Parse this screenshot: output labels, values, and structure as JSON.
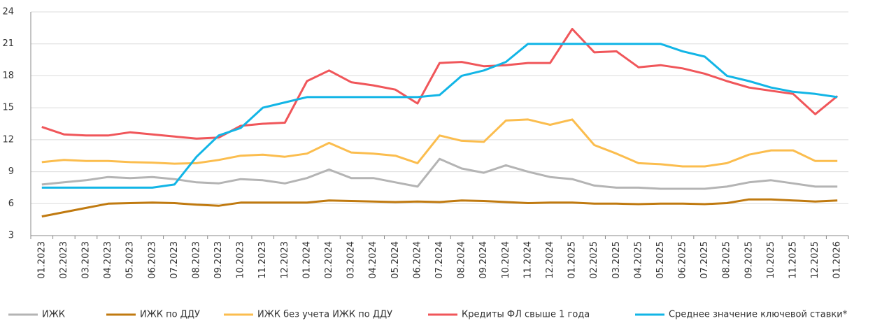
{
  "chart_data": {
    "type": "line",
    "categories": [
      "01.2023",
      "02.2023",
      "03.2023",
      "04.2023",
      "05.2023",
      "06.2023",
      "07.2023",
      "08.2023",
      "09.2023",
      "10.2023",
      "11.2023",
      "12.2023",
      "01.2024",
      "02.2024",
      "03.2024",
      "04.2024",
      "05.2024",
      "06.2024",
      "07.2024",
      "08.2024",
      "09.2024",
      "10.2024",
      "11.2024",
      "12.2024",
      "01.2025",
      "02.2025",
      "03.2025",
      "04.2025",
      "05.2025",
      "06.2025",
      "07.2025",
      "08.2025",
      "09.2025",
      "10.2025",
      "11.2025",
      "12.2025",
      "01.2026"
    ],
    "ylim": [
      3,
      24
    ],
    "yticks": [
      3,
      6,
      9,
      12,
      15,
      18,
      21,
      24
    ],
    "grid": true,
    "series": [
      {
        "name": "ИЖК",
        "color": "#b4b4b4",
        "values": [
          7.8,
          8.0,
          8.2,
          8.5,
          8.4,
          8.5,
          8.3,
          8.0,
          7.9,
          8.3,
          8.2,
          7.9,
          8.4,
          9.2,
          8.4,
          8.4,
          8.0,
          7.6,
          10.2,
          9.3,
          8.9,
          9.6,
          9.0,
          8.5,
          8.3,
          7.7,
          7.5,
          7.5,
          7.4,
          7.4,
          7.4,
          7.6,
          8.0,
          8.2,
          7.9,
          7.6,
          7.6
        ]
      },
      {
        "name": "ИЖК по ДДУ",
        "color": "#c07a10",
        "values": [
          4.8,
          5.2,
          5.6,
          6.0,
          6.05,
          6.1,
          6.05,
          5.9,
          5.8,
          6.1,
          6.1,
          6.1,
          6.1,
          6.3,
          6.25,
          6.2,
          6.15,
          6.2,
          6.15,
          6.3,
          6.25,
          6.15,
          6.05,
          6.1,
          6.1,
          6.0,
          6.0,
          5.95,
          6.0,
          6.0,
          5.95,
          6.05,
          6.4,
          6.4,
          6.3,
          6.2,
          6.3
        ]
      },
      {
        "name": "ИЖК без учета ИЖК по ДДУ",
        "color": "#fbbd4e",
        "values": [
          9.9,
          10.1,
          10.0,
          10.0,
          9.9,
          9.85,
          9.75,
          9.8,
          10.1,
          10.5,
          10.6,
          10.4,
          10.7,
          11.7,
          10.8,
          10.7,
          10.5,
          9.8,
          12.4,
          11.9,
          11.8,
          13.8,
          13.9,
          13.4,
          13.9,
          11.5,
          10.7,
          9.8,
          9.7,
          9.5,
          9.5,
          9.8,
          10.6,
          11.0,
          11.0,
          10.0,
          10.0
        ]
      },
      {
        "name": "Кредиты ФЛ свыше 1 года",
        "color": "#f0565a",
        "values": [
          13.2,
          12.5,
          12.4,
          12.4,
          12.7,
          12.5,
          12.3,
          12.1,
          12.2,
          13.3,
          13.5,
          13.6,
          17.5,
          18.5,
          17.4,
          17.1,
          16.7,
          15.4,
          19.2,
          19.3,
          18.9,
          19.0,
          19.2,
          19.2,
          22.4,
          20.2,
          20.3,
          18.8,
          19.0,
          18.7,
          18.2,
          17.5,
          16.9,
          16.6,
          16.3,
          14.4,
          16.1
        ]
      },
      {
        "name": "Среднее значение ключевой ставки*",
        "color": "#12b5e6",
        "values": [
          7.5,
          7.5,
          7.5,
          7.5,
          7.5,
          7.5,
          7.8,
          10.4,
          12.4,
          13.1,
          15.0,
          15.5,
          16.0,
          16.0,
          16.0,
          16.0,
          16.0,
          16.0,
          16.2,
          18.0,
          18.5,
          19.3,
          21.0,
          21.0,
          21.0,
          21.0,
          21.0,
          21.0,
          21.0,
          20.3,
          19.8,
          18.0,
          17.5,
          16.9,
          16.5,
          16.3,
          16.0
        ]
      }
    ]
  }
}
